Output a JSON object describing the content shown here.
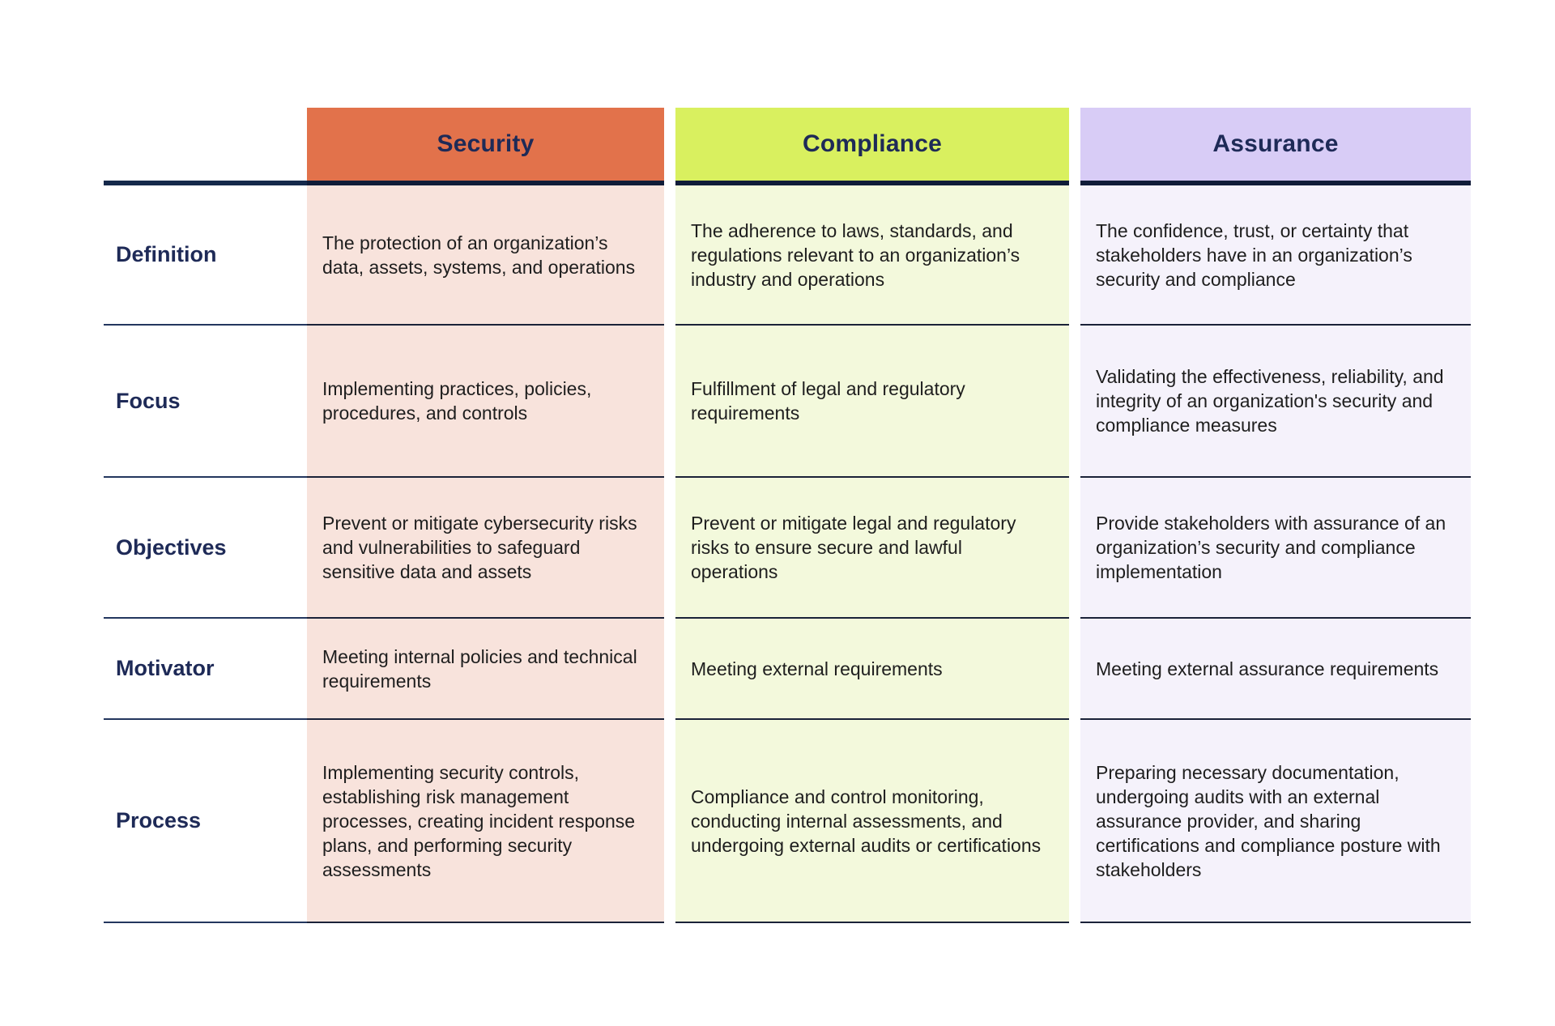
{
  "page": {
    "background": "#FFFFFF"
  },
  "table": {
    "columns": [
      {
        "label": "Security",
        "header_bg": "#E2724B",
        "cell_bg": "#F8E3DC"
      },
      {
        "label": "Compliance",
        "header_bg": "#D9F05F",
        "cell_bg": "#F3F9DC"
      },
      {
        "label": "Assurance",
        "header_bg": "#D8CCF6",
        "cell_bg": "#F5F2FB"
      }
    ],
    "rows": [
      {
        "label": "Definition",
        "cells": [
          "The protection of an organization’s data, assets, systems, and operations",
          "The adherence to laws, standards, and regulations relevant to an organization’s industry and operations",
          "The confidence, trust, or certainty that stakeholders have in an organization’s security and compliance"
        ]
      },
      {
        "label": "Focus",
        "cells": [
          "Implementing practices, policies, procedures, and controls",
          "Fulfillment of legal and regulatory requirements",
          "Validating the effectiveness, reliability, and integrity of an organization's security and compliance measures"
        ]
      },
      {
        "label": "Objectives",
        "cells": [
          "Prevent or mitigate cybersecurity risks and vulnerabilities to safeguard sensitive data and assets",
          "Prevent or mitigate legal and regulatory risks to ensure secure and lawful operations",
          "Provide stakeholders with assurance of an organization’s security and compliance implementation"
        ]
      },
      {
        "label": "Motivator",
        "cells": [
          "Meeting internal policies and technical requirements",
          "Meeting external requirements",
          "Meeting external assurance requirements"
        ]
      },
      {
        "label": "Process",
        "cells": [
          "Implementing security controls, establishing risk management processes, creating incident response plans, and performing security assessments",
          "Compliance and control monitoring, conducting internal assessments, and undergoing external audits or certifications",
          "Preparing necessary documentation, undergoing audits with an external assurance provider, and sharing certifications and compliance posture with stakeholders"
        ]
      }
    ],
    "colors": {
      "header_text": "#1E2A57",
      "label_text": "#1E2A57",
      "body_text": "#1E1E1E",
      "header_rule": "#101C38",
      "row_rule": "#1A2238"
    }
  }
}
